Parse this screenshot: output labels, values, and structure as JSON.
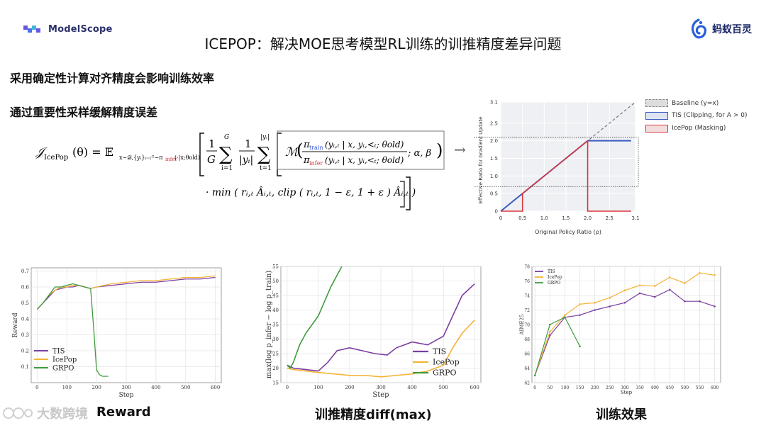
{
  "header": {
    "modelscope_logo_text": "ModelScope",
    "ant_logo_text": "蚂蚁百灵",
    "title": "ICEPOP：解决MOE思考模型RL训练的训推精度差异问题"
  },
  "points": {
    "point1": "采用确定性计算对齐精度会影响训练效率",
    "point2": "通过重要性采样缓解精度误差"
  },
  "formula": {
    "lhs": "𝒥",
    "lhs_sub": "IcePop",
    "theta": "(θ) = 𝔼",
    "expect_sub": "x∼𝒟,{yᵢ}ᵢ₌₁ᴳ∼π",
    "expect_sub_infer": "infer",
    "expect_sub_tail": "(·|x;θold)",
    "frac1_num": "1",
    "frac1_den": "G",
    "sum1_top": "G",
    "sum1_bottom": "i=1",
    "frac2_num": "1",
    "frac2_den": "|yᵢ|",
    "sum2_top": "|yᵢ|",
    "sum2_bottom": "t=1",
    "mask_symbol": "ℳ",
    "pi": "π",
    "train": "train",
    "infer": "infer",
    "cond": "(yᵢ,ₜ | x, yᵢ,<ₜ; θold)",
    "mask_params": "; α, β",
    "min_part": "· min ( rᵢ,ₜ Âᵢ,ₜ, clip ( rᵢ,ₜ, 1 − ε, 1 + ε ) Âᵢ,ₜ )",
    "arrow": "→"
  },
  "mask_chart": {
    "type": "line",
    "ylabel": "Effective Ratio for Gradient Update",
    "xlabel": "Original Policy Ratio (ρ)",
    "xticks": [
      "0",
      "0.5",
      "1.0",
      "1.5",
      "2.0",
      "2.5",
      "3.1"
    ],
    "yticks": [
      "0",
      "0.5",
      "1.0",
      "1.5",
      "2.0",
      "2.5",
      "3.1"
    ],
    "xlim": [
      0,
      3.1
    ],
    "ylim": [
      0,
      3.1
    ],
    "legend": [
      {
        "name": "Baseline (y=x)",
        "color": "#999999"
      },
      {
        "name": "TIS (Clipping, for A > 0)",
        "color": "#3a5bbf"
      },
      {
        "name": "IcePop (Masking)",
        "color": "#d9363e"
      }
    ]
  },
  "chart_data": [
    {
      "type": "line",
      "title": "",
      "xlabel": "Step",
      "ylabel": "Reward",
      "xlim": [
        -20,
        620
      ],
      "ylim": [
        0.0,
        0.72
      ],
      "xticks": [
        0,
        100,
        200,
        300,
        400,
        500,
        600
      ],
      "yticks": [
        0.1,
        0.2,
        0.3,
        0.4,
        0.5,
        0.6,
        0.7
      ],
      "legend_position": "bottom-left",
      "series": [
        {
          "name": "TIS",
          "color": "#7b3fa1",
          "x": [
            0,
            20,
            40,
            60,
            80,
            100,
            120,
            140,
            160,
            180,
            200,
            250,
            300,
            350,
            400,
            450,
            500,
            550,
            600
          ],
          "y": [
            0.46,
            0.5,
            0.54,
            0.58,
            0.59,
            0.6,
            0.6,
            0.61,
            0.6,
            0.59,
            0.6,
            0.61,
            0.62,
            0.63,
            0.63,
            0.64,
            0.65,
            0.65,
            0.66
          ]
        },
        {
          "name": "IcePop",
          "color": "#f5b335",
          "x": [
            0,
            20,
            40,
            60,
            80,
            100,
            120,
            140,
            160,
            180,
            200,
            250,
            300,
            350,
            400,
            450,
            500,
            550,
            600
          ],
          "y": [
            0.46,
            0.5,
            0.55,
            0.58,
            0.6,
            0.6,
            0.61,
            0.61,
            0.6,
            0.59,
            0.6,
            0.62,
            0.63,
            0.64,
            0.64,
            0.65,
            0.66,
            0.66,
            0.67
          ]
        },
        {
          "name": "GRPO",
          "color": "#3f9b3f",
          "x": [
            0,
            20,
            40,
            60,
            80,
            100,
            120,
            140,
            160,
            180,
            190,
            200,
            210,
            220,
            240
          ],
          "y": [
            0.46,
            0.5,
            0.55,
            0.6,
            0.6,
            0.61,
            0.62,
            0.61,
            0.6,
            0.59,
            0.35,
            0.08,
            0.05,
            0.04,
            0.04
          ]
        }
      ],
      "bottom_label": "Reward"
    },
    {
      "type": "line",
      "title": "",
      "xlabel": "Step",
      "ylabel": "max(log p_infer − log p_train)",
      "xlim": [
        -20,
        620
      ],
      "ylim": [
        15,
        55
      ],
      "xticks": [
        0,
        100,
        200,
        300,
        400,
        500,
        600
      ],
      "yticks": [
        15,
        20,
        25,
        30,
        35,
        40,
        45,
        50,
        55
      ],
      "legend_position": "bottom-right",
      "series": [
        {
          "name": "TIS",
          "color": "#7b3fa1",
          "x": [
            0,
            20,
            60,
            100,
            130,
            160,
            200,
            240,
            280,
            320,
            350,
            400,
            450,
            500,
            530,
            560,
            600
          ],
          "y": [
            21,
            20,
            19.5,
            19,
            22,
            26,
            27,
            26,
            25,
            24.5,
            27,
            29,
            28,
            31,
            38,
            45,
            49
          ]
        },
        {
          "name": "IcePop",
          "color": "#f5b335",
          "x": [
            0,
            20,
            60,
            100,
            150,
            200,
            250,
            300,
            350,
            400,
            450,
            500,
            530,
            560,
            600
          ],
          "y": [
            20,
            19.5,
            19,
            18.5,
            18,
            17.5,
            17.5,
            17,
            17.5,
            18,
            19,
            21,
            27,
            32,
            36.5
          ]
        },
        {
          "name": "GRPO",
          "color": "#3f9b3f",
          "x": [
            0,
            10,
            20,
            40,
            60,
            80,
            100,
            120,
            140,
            160,
            175
          ],
          "y": [
            21,
            20,
            22,
            28,
            32,
            35,
            38,
            43,
            48,
            52,
            55
          ]
        }
      ],
      "bottom_label": "训推精度diff(max)"
    },
    {
      "type": "line",
      "title": "",
      "xlabel": "Step",
      "ylabel": "AIME25",
      "xlim": [
        -10,
        620
      ],
      "ylim": [
        62,
        78
      ],
      "xticks": [
        0,
        50,
        100,
        150,
        200,
        250,
        300,
        350,
        400,
        450,
        500,
        550,
        600
      ],
      "yticks": [
        62,
        64,
        66,
        68,
        70,
        72,
        74,
        76,
        78
      ],
      "legend_position": "top-left",
      "series": [
        {
          "name": "TIS",
          "color": "#7b3fa1",
          "x": [
            0,
            50,
            100,
            150,
            200,
            250,
            300,
            350,
            400,
            450,
            500,
            550,
            600
          ],
          "y": [
            63,
            68.5,
            71,
            71.3,
            72,
            72.5,
            73,
            74.3,
            73.8,
            74.8,
            73.2,
            73.2,
            72.5
          ]
        },
        {
          "name": "IcePop",
          "color": "#f5b335",
          "x": [
            0,
            50,
            100,
            150,
            200,
            250,
            300,
            350,
            400,
            450,
            500,
            550,
            600
          ],
          "y": [
            63,
            69,
            71.3,
            72.8,
            73,
            73.7,
            74.7,
            75.4,
            75.3,
            76.5,
            75.7,
            77.1,
            76.8
          ]
        },
        {
          "name": "GRPO",
          "color": "#3f9b3f",
          "x": [
            0,
            50,
            100,
            150
          ],
          "y": [
            63,
            70,
            71,
            67
          ]
        }
      ],
      "bottom_label": "训练效果"
    }
  ],
  "watermark": {
    "text": "大数跨境"
  }
}
